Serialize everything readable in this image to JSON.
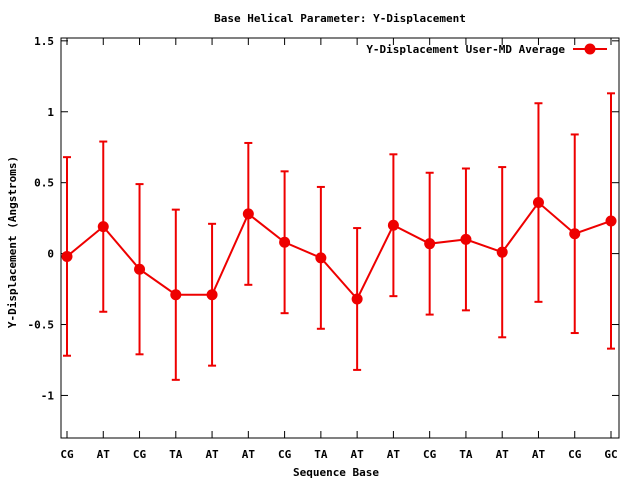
{
  "chart_data": {
    "type": "line",
    "title": "Base  Helical Parameter: Y-Displacement",
    "xlabel": "Sequence Base",
    "ylabel": "Y-Displacement (Angstroms)",
    "ylim": [
      -1.3,
      1.52
    ],
    "yticks": [
      {
        "value": 1.5,
        "label": "1.5"
      },
      {
        "value": 1,
        "label": "1"
      },
      {
        "value": 0.5,
        "label": "0.5"
      },
      {
        "value": 0,
        "label": "0"
      },
      {
        "value": -0.5,
        "label": "-0.5"
      },
      {
        "value": -1,
        "label": "-1"
      }
    ],
    "categories": [
      "CG",
      "AT",
      "CG",
      "TA",
      "AT",
      "AT",
      "CG",
      "TA",
      "AT",
      "AT",
      "CG",
      "TA",
      "AT",
      "AT",
      "CG",
      "GC"
    ],
    "legend_position": "top-right",
    "grid": false,
    "series": [
      {
        "name": "Y-Displacement User-MD Average",
        "color": "#ee0000",
        "values": [
          -0.02,
          0.19,
          -0.11,
          -0.29,
          -0.29,
          0.28,
          0.08,
          -0.03,
          -0.32,
          0.2,
          0.07,
          0.1,
          0.01,
          0.36,
          0.14,
          0.23
        ],
        "error": [
          0.7,
          0.6,
          0.6,
          0.6,
          0.5,
          0.5,
          0.5,
          0.5,
          0.5,
          0.5,
          0.5,
          0.5,
          0.6,
          0.7,
          0.7,
          0.9
        ]
      }
    ]
  }
}
